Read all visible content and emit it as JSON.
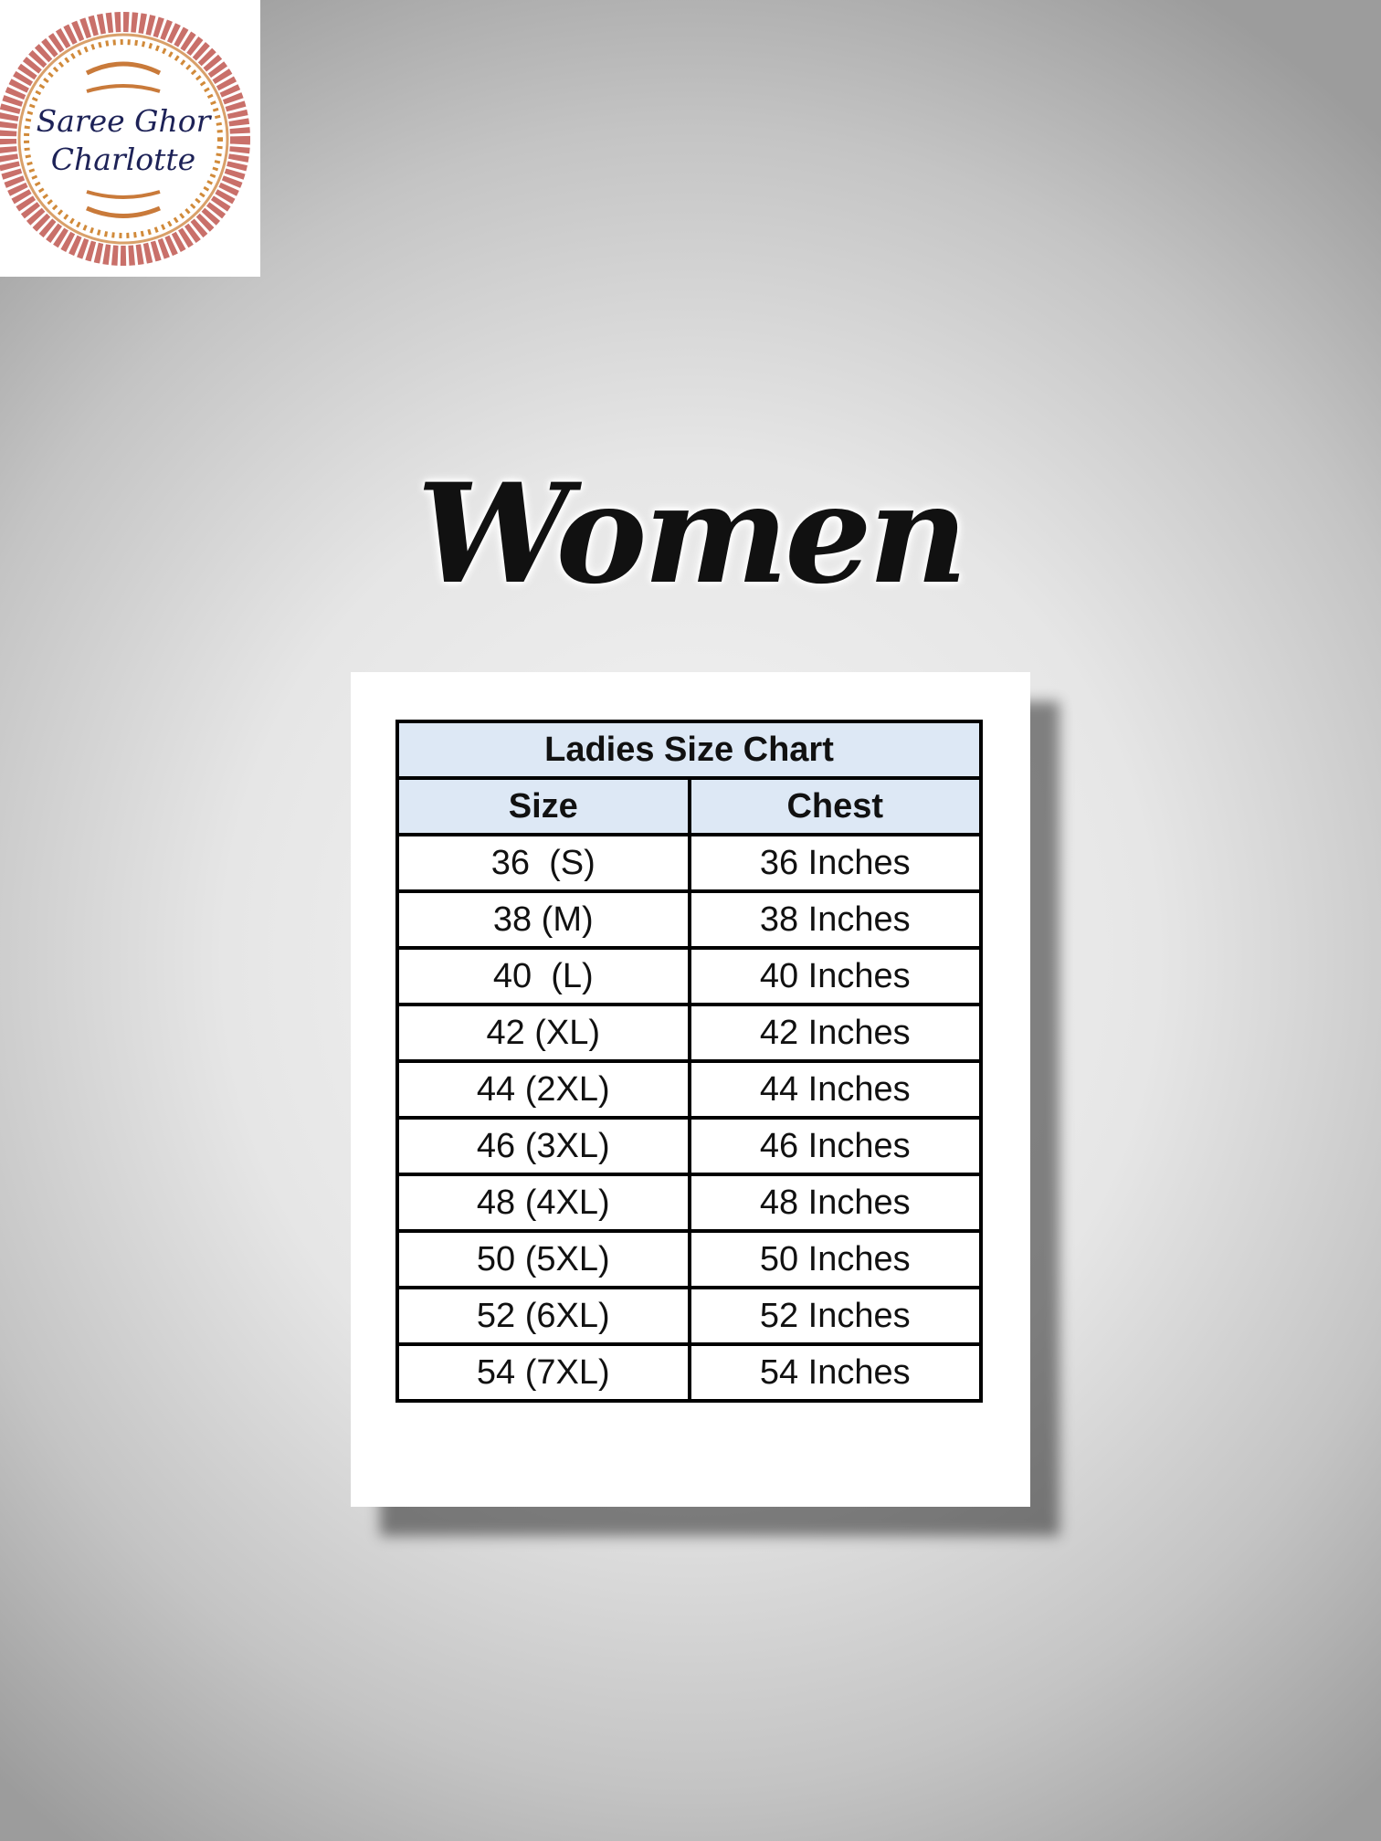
{
  "logo": {
    "line1": "Saree Ghor",
    "line2": "Charlotte",
    "colors": {
      "ring": "#b5504a",
      "gold": "#d18a3a",
      "text": "#1d2257"
    }
  },
  "heading": "Women",
  "table": {
    "title": "Ladies Size Chart",
    "columns": [
      "Size",
      "Chest"
    ],
    "header_color": "#dde8f5",
    "rows": [
      [
        "36  (S)",
        "36 Inches"
      ],
      [
        "38 (M)",
        "38 Inches"
      ],
      [
        "40  (L)",
        "40 Inches"
      ],
      [
        "42 (XL)",
        "42 Inches"
      ],
      [
        "44 (2XL)",
        "44 Inches"
      ],
      [
        "46 (3XL)",
        "46 Inches"
      ],
      [
        "48 (4XL)",
        "48 Inches"
      ],
      [
        "50 (5XL)",
        "50 Inches"
      ],
      [
        "52 (6XL)",
        "52 Inches"
      ],
      [
        "54 (7XL)",
        "54 Inches"
      ]
    ]
  }
}
